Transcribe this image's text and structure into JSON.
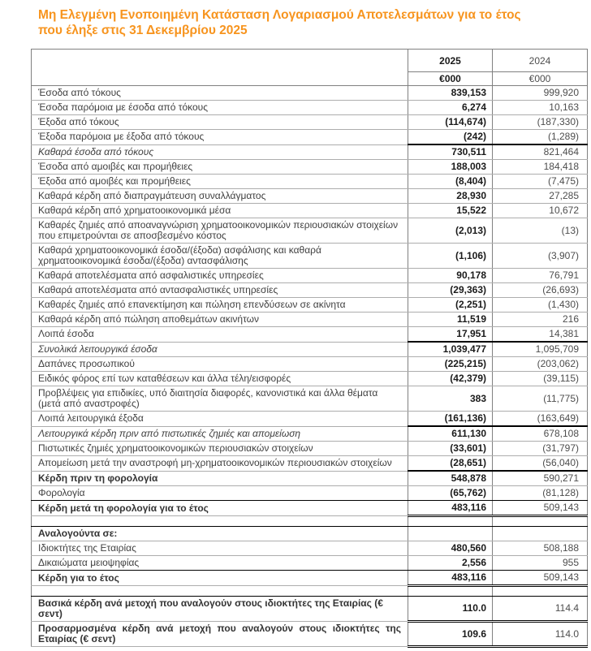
{
  "title": {
    "line1": "Μη Ελεγμένη Ενοποιημένη Κατάσταση Λογαριασμού Αποτελεσμάτων για το έτος",
    "line2": "που έληξε στις 31 Δεκεμβρίου 2025"
  },
  "theme": {
    "accent": "#F7941E",
    "grid_line": "#ADADAD",
    "border_line": "#808080",
    "emphasis_line": "#000000",
    "label_text": "#3F3F3F",
    "value_2025_text": "#1A1A1A",
    "value_2024_text": "#4D4D4D"
  },
  "table": {
    "columns": [
      "2025",
      "2024"
    ],
    "units": [
      "€000",
      "€000"
    ],
    "rows": [
      {
        "label": "Έσοδα από τόκους",
        "y2025": "839,153",
        "y2024": "999,920",
        "style": "normal",
        "rule": "none"
      },
      {
        "label": "Έσοδα παρόμοια με έσοδα από τόκους",
        "y2025": "6,274",
        "y2024": "10,163",
        "style": "normal",
        "rule": "none"
      },
      {
        "label": "Έξοδα από τόκους",
        "y2025": "(114,674)",
        "y2024": "(187,330)",
        "style": "normal",
        "rule": "none"
      },
      {
        "label": "Έξοδα παρόμοια με έξοδα από τόκους",
        "y2025": "(242)",
        "y2024": "(1,289)",
        "style": "normal",
        "rule": "num-dark"
      },
      {
        "label": "Καθαρά έσοδα από τόκους",
        "y2025": "730,511",
        "y2024": "821,464",
        "style": "italic",
        "rule": "none"
      },
      {
        "label": "Έσοδα από αμοιβές και προμήθειες",
        "y2025": "188,003",
        "y2024": "184,418",
        "style": "normal",
        "rule": "none"
      },
      {
        "label": "Έξοδα από αμοιβές και προμήθειες",
        "y2025": "(8,404)",
        "y2024": "(7,475)",
        "style": "normal",
        "rule": "none"
      },
      {
        "label": "Καθαρά κέρδη από διαπραγμάτευση συναλλάγματος",
        "y2025": "28,930",
        "y2024": "27,285",
        "style": "normal",
        "rule": "none"
      },
      {
        "label": "Καθαρά κέρδη από χρηματοοικονομικά μέσα",
        "y2025": "15,522",
        "y2024": "10,672",
        "style": "normal",
        "rule": "none"
      },
      {
        "label": "Καθαρές ζημιές από αποαναγνώριση χρηματοοικονομικών περιουσιακών στοιχείων που επιμετρούνται σε αποσβεσμένο κόστος",
        "y2025": "(2,013)",
        "y2024": "(13)",
        "style": "normal",
        "rule": "none"
      },
      {
        "label": "Καθαρά χρηματοοικονομικά έσοδα/(έξοδα) ασφάλισης και καθαρά χρηματοοικονομικά έσοδα/(έξοδα) αντασφάλισης",
        "y2025": "(1,106)",
        "y2024": "(3,907)",
        "style": "normal",
        "rule": "none"
      },
      {
        "label": "Καθαρά αποτελέσματα από ασφαλιστικές υπηρεσίες",
        "y2025": "90,178",
        "y2024": "76,791",
        "style": "normal",
        "rule": "none"
      },
      {
        "label": "Καθαρά αποτελέσματα από αντασφαλιστικές υπηρεσίες",
        "y2025": "(29,363)",
        "y2024": "(26,693)",
        "style": "normal",
        "rule": "none"
      },
      {
        "label": "Καθαρές ζημιές από επανεκτίμηση και πώληση επενδύσεων σε ακίνητα",
        "y2025": "(2,251)",
        "y2024": "(1,430)",
        "style": "normal",
        "rule": "none"
      },
      {
        "label": "Καθαρά κέρδη από πώληση αποθεμάτων ακινήτων",
        "y2025": "11,519",
        "y2024": "216",
        "style": "normal",
        "rule": "none"
      },
      {
        "label": "Λοιπά έσοδα",
        "y2025": "17,951",
        "y2024": "14,381",
        "style": "normal",
        "rule": "num-dark"
      },
      {
        "label": "Συνολικά λειτουργικά έσοδα",
        "y2025": "1,039,477",
        "y2024": "1,095,709",
        "style": "italic",
        "rule": "none"
      },
      {
        "label": "Δαπάνες προσωπικού",
        "y2025": "(225,215)",
        "y2024": "(203,062)",
        "style": "normal",
        "rule": "none"
      },
      {
        "label": "Ειδικός φόρος επί των καταθέσεων και άλλα τέλη/εισφορές",
        "y2025": "(42,379)",
        "y2024": "(39,115)",
        "style": "normal",
        "rule": "none"
      },
      {
        "label": "Προβλέψεις για επιδικίες, υπό διαιτησία διαφορές, κανονιστικά και άλλα θέματα (μετά από αναστροφές)",
        "y2025": "383",
        "y2024": "(11,775)",
        "style": "normal",
        "rule": "none"
      },
      {
        "label": "Λοιπά λειτουργικά έξοδα",
        "y2025": "(161,136)",
        "y2024": "(163,649)",
        "style": "normal",
        "rule": "num-dark"
      },
      {
        "label": "Λειτουργικά κέρδη πριν από πιστωτικές ζημιές και απομείωση",
        "y2025": "611,130",
        "y2024": "678,108",
        "style": "italic",
        "rule": "none"
      },
      {
        "label": "Πιστωτικές ζημιές χρηματοοικονομικών περιουσιακών στοιχείων",
        "y2025": "(33,601)",
        "y2024": "(31,797)",
        "style": "normal",
        "rule": "none"
      },
      {
        "label": "Απομείωση μετά την αναστροφή μη-χρηματοοικονομικών περιουσιακών στοιχείων",
        "y2025": "(28,651)",
        "y2024": "(56,040)",
        "style": "normal",
        "rule": "num-dark"
      },
      {
        "label": "Κέρδη πριν τη φορολογία",
        "y2025": "548,878",
        "y2024": "590,271",
        "style": "bold",
        "rule": "none"
      },
      {
        "label": "Φορολογία",
        "y2025": "(65,762)",
        "y2024": "(81,128)",
        "style": "normal",
        "rule": "full-dark"
      },
      {
        "label": "Κέρδη μετά τη φορολογία για το έτος",
        "y2025": "483,116",
        "y2024": "509,143",
        "style": "bold",
        "rule": "num-double"
      },
      {
        "label": "",
        "y2025": "",
        "y2024": "",
        "style": "empty",
        "rule": "full-dark"
      },
      {
        "label": "Αναλογούντα σε:",
        "y2025": "",
        "y2024": "",
        "style": "bold",
        "rule": "none"
      },
      {
        "label": "Ιδιοκτήτες της Εταιρίας",
        "y2025": "480,560",
        "y2024": "508,188",
        "style": "normal",
        "rule": "none"
      },
      {
        "label": "Δικαιώματα μειοψηφίας",
        "y2025": "2,556",
        "y2024": "955",
        "style": "normal",
        "rule": "full-dark"
      },
      {
        "label": "Κέρδη για το έτος",
        "y2025": "483,116",
        "y2024": "509,143",
        "style": "bold",
        "rule": "num-double"
      },
      {
        "label": "",
        "y2025": "",
        "y2024": "",
        "style": "empty",
        "rule": "full-dark"
      },
      {
        "label": "Βασικά κέρδη ανά μετοχή που αναλογούν στους ιδιοκτήτες της Εταιρίας (€ σεντ)",
        "y2025": "110.0",
        "y2024": "114.4",
        "style": "bold",
        "rule": "num-double"
      },
      {
        "label": "Προσαρμοσμένα κέρδη ανά μετοχή που αναλογούν στους ιδιοκτήτες της Εταιρίας (€ σεντ)",
        "y2025": "109.6",
        "y2024": "114.0",
        "style": "bold-justify",
        "rule": "num-double"
      }
    ]
  }
}
